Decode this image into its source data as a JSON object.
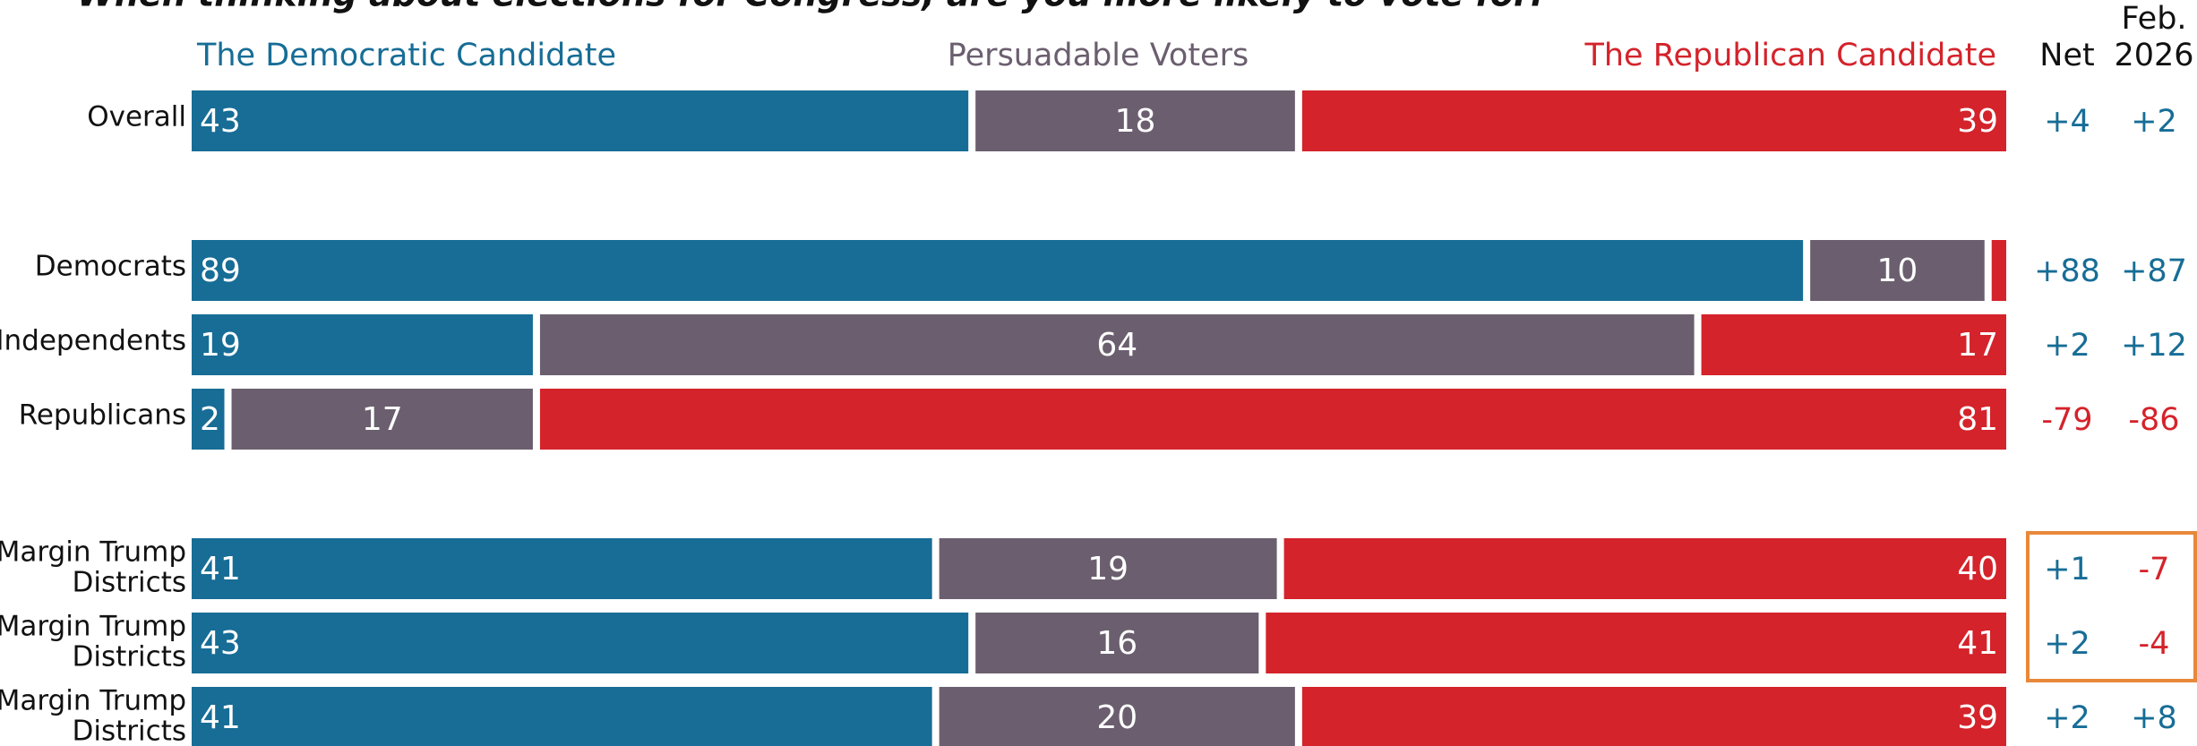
{
  "chart_data": {
    "type": "stacked-bar",
    "title": "When thinking about elections for Congress, are you more likely to vote for:",
    "categories": [
      "Overall",
      "Democrats",
      "Independents",
      "Republicans",
      [
        "e Margin Trump",
        "Districts"
      ],
      [
        "l Margin Trump",
        "Districts"
      ],
      [
        "Margin Trump",
        "Districts"
      ]
    ],
    "xlim": [
      0,
      100
    ],
    "series": [
      {
        "name": "The Democratic Candidate",
        "color": "#176d96",
        "values": [
          43,
          89,
          19,
          2,
          41,
          43,
          41
        ]
      },
      {
        "name": "Persuadable Voters",
        "color": "#6b5f6f",
        "values": [
          18,
          10,
          64,
          17,
          19,
          16,
          20
        ]
      },
      {
        "name": "The Republican Candidate",
        "color": "#d4232b",
        "values": [
          39,
          1,
          17,
          81,
          40,
          41,
          39
        ]
      }
    ],
    "columns": [
      {
        "header": [
          "Net"
        ],
        "values": [
          4,
          88,
          2,
          -79,
          1,
          2,
          2
        ],
        "value_labels": [
          "+4",
          "+88",
          "+2",
          "-79",
          "+1",
          "+2",
          "+2"
        ]
      },
      {
        "header": [
          "Feb.",
          "2026"
        ],
        "values": [
          2,
          87,
          12,
          -86,
          -7,
          -4,
          8
        ],
        "value_labels": [
          "+2",
          "+87",
          "+12",
          "-86",
          "-7",
          "-4",
          "+8"
        ]
      }
    ],
    "positive_color": "#176d96",
    "negative_color": "#d4232b",
    "highlight_rows": [
      4,
      5
    ],
    "highlight_color": "#e8883a"
  }
}
